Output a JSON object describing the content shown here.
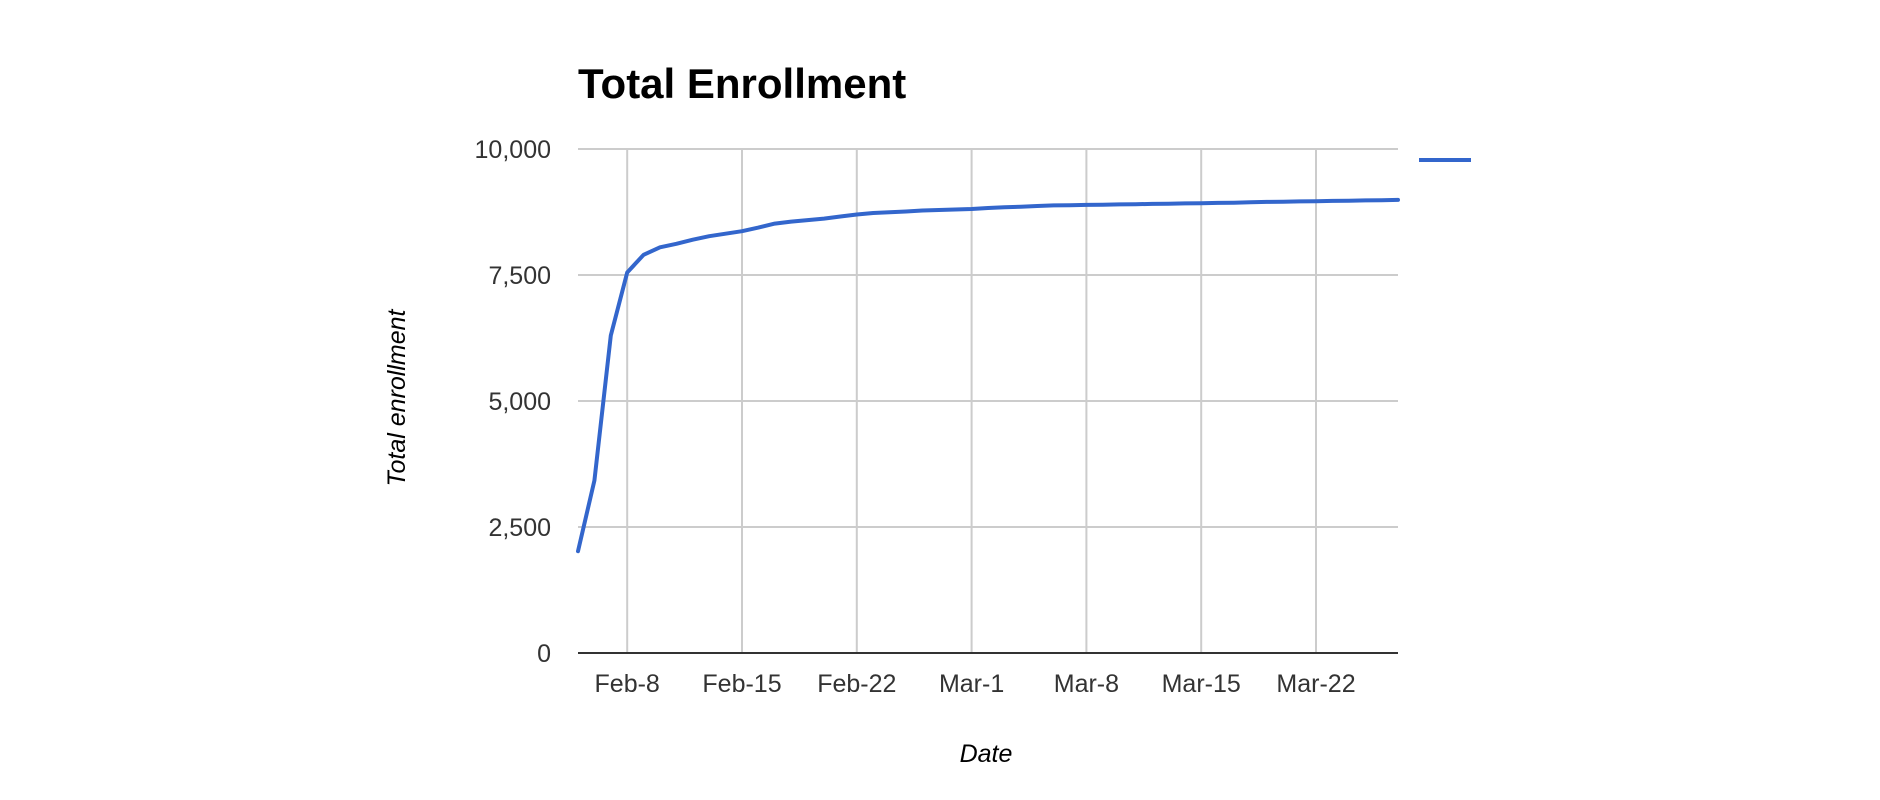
{
  "colors": {
    "series": "#3366cc",
    "grid": "#cccccc",
    "baseline": "#333333",
    "tick_text": "#333333",
    "title_text": "#000000"
  },
  "chart_data": {
    "type": "line",
    "title": "Total Enrollment",
    "xlabel": "Date",
    "ylabel": "Total enrollment",
    "x_type": "date",
    "year_assumed_for_plotting": null,
    "x_ticks": [
      "Feb-8",
      "Feb-15",
      "Feb-22",
      "Mar-1",
      "Mar-8",
      "Mar-15",
      "Mar-22"
    ],
    "y_ticks": [
      "0",
      "2,500",
      "5,000",
      "7,500",
      "10,000"
    ],
    "ylim": [
      0,
      10000
    ],
    "xlim": [
      "Feb-5",
      "Mar-27"
    ],
    "grid": true,
    "legend": {
      "position": "right",
      "entries": [
        {
          "name": "",
          "color": "#3366cc"
        }
      ]
    },
    "series": [
      {
        "name": "",
        "color": "#3366cc",
        "points": [
          {
            "x": "Feb-5",
            "y": 2020
          },
          {
            "x": "Feb-6",
            "y": 3420
          },
          {
            "x": "Feb-7",
            "y": 6300
          },
          {
            "x": "Feb-8",
            "y": 7550
          },
          {
            "x": "Feb-9",
            "y": 7900
          },
          {
            "x": "Feb-10",
            "y": 8050
          },
          {
            "x": "Feb-11",
            "y": 8120
          },
          {
            "x": "Feb-12",
            "y": 8200
          },
          {
            "x": "Feb-13",
            "y": 8270
          },
          {
            "x": "Feb-14",
            "y": 8320
          },
          {
            "x": "Feb-15",
            "y": 8370
          },
          {
            "x": "Feb-16",
            "y": 8440
          },
          {
            "x": "Feb-17",
            "y": 8520
          },
          {
            "x": "Feb-18",
            "y": 8560
          },
          {
            "x": "Feb-19",
            "y": 8590
          },
          {
            "x": "Feb-20",
            "y": 8620
          },
          {
            "x": "Feb-21",
            "y": 8660
          },
          {
            "x": "Feb-22",
            "y": 8700
          },
          {
            "x": "Feb-23",
            "y": 8730
          },
          {
            "x": "Feb-24",
            "y": 8745
          },
          {
            "x": "Feb-25",
            "y": 8760
          },
          {
            "x": "Feb-26",
            "y": 8780
          },
          {
            "x": "Feb-27",
            "y": 8790
          },
          {
            "x": "Feb-28",
            "y": 8800
          },
          {
            "x": "Mar-1",
            "y": 8810
          },
          {
            "x": "Mar-2",
            "y": 8830
          },
          {
            "x": "Mar-3",
            "y": 8845
          },
          {
            "x": "Mar-4",
            "y": 8855
          },
          {
            "x": "Mar-5",
            "y": 8870
          },
          {
            "x": "Mar-6",
            "y": 8880
          },
          {
            "x": "Mar-7",
            "y": 8885
          },
          {
            "x": "Mar-8",
            "y": 8890
          },
          {
            "x": "Mar-9",
            "y": 8895
          },
          {
            "x": "Mar-10",
            "y": 8900
          },
          {
            "x": "Mar-11",
            "y": 8905
          },
          {
            "x": "Mar-12",
            "y": 8910
          },
          {
            "x": "Mar-13",
            "y": 8915
          },
          {
            "x": "Mar-14",
            "y": 8920
          },
          {
            "x": "Mar-15",
            "y": 8925
          },
          {
            "x": "Mar-16",
            "y": 8930
          },
          {
            "x": "Mar-17",
            "y": 8935
          },
          {
            "x": "Mar-18",
            "y": 8945
          },
          {
            "x": "Mar-19",
            "y": 8950
          },
          {
            "x": "Mar-20",
            "y": 8955
          },
          {
            "x": "Mar-21",
            "y": 8960
          },
          {
            "x": "Mar-22",
            "y": 8965
          },
          {
            "x": "Mar-23",
            "y": 8970
          },
          {
            "x": "Mar-24",
            "y": 8975
          },
          {
            "x": "Mar-25",
            "y": 8980
          },
          {
            "x": "Mar-26",
            "y": 8985
          },
          {
            "x": "Mar-27",
            "y": 8990
          }
        ]
      }
    ]
  }
}
